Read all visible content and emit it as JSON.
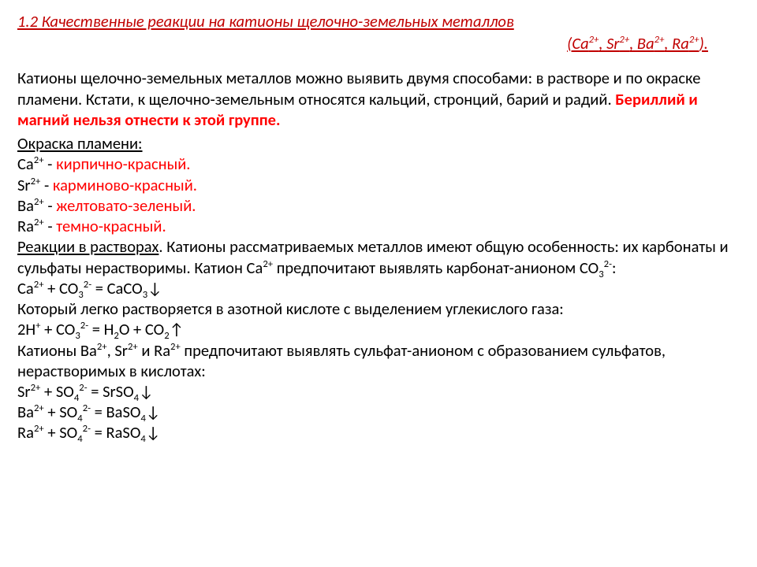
{
  "title_fontsize": 20.5,
  "body_fontsize": 20.5,
  "colors": {
    "heading": "#c00000",
    "red_accent": "#ff0000",
    "text": "#000000",
    "background": "#ffffff"
  },
  "heading": {
    "line1": "1.2 Качественные реакции на катионы щелочно-земельных металлов",
    "line2_html": "(Ca<sup>2+</sup>, Sr<sup>2+</sup>, Ba<sup>2+</sup>, Ra<sup>2+</sup>)."
  },
  "intro": {
    "plain": "Катионы щелочно-земельных металлов можно выявить двумя способами: в растворе и по окраске пламени. Кстати, к щелочно-земельным относятся кальций, стронций, барий и радий. ",
    "accent": "Бериллий и магний нельзя отнести к этой группе."
  },
  "flame": {
    "label": "Окраска пламени:",
    "items": [
      {
        "ion_html": "Ca<sup>2+</sup> - ",
        "color_text": "кирпично-красный."
      },
      {
        "ion_html": "Sr<sup>2+</sup> - ",
        "color_text": "карминово-красный."
      },
      {
        "ion_html": "Ba<sup>2+</sup> - ",
        "color_text": "желтовато-зеленый."
      },
      {
        "ion_html": "Ra<sup>2+</sup> - ",
        "color_text": "темно-красный."
      }
    ]
  },
  "solutions": {
    "label": "Реакции в растворах",
    "text1_html": ". Катионы рассматриваемых металлов имеют общую особенность: их карбонаты и сульфаты нерастворимы. Катион Ca<sup>2+</sup> предпочитают выявлять карбонат-анионом CO<sub>3</sub><sup>2-</sup>:",
    "eq1_html": "Ca<sup>2+</sup> + CO<sub>3</sub><sup>2-</sup> = CaCO<sub>3</sub>↓",
    "text2": "Который легко растворяется в азотной кислоте с выделением углекислого газа:",
    "eq2_html": "2H<sup>+</sup> + CO<sub>3</sub><sup>2-</sup> = H<sub>2</sub>O + CO<sub>2</sub>↑",
    "text3_html": "Катионы Ba<sup>2+</sup>, Sr<sup>2+</sup> и Ra<sup>2+</sup> предпочитают выявлять сульфат-анионом с образованием сульфатов, нерастворимых в кислотах:",
    "eq3_html": "Sr<sup>2+</sup> + SO<sub>4</sub><sup>2-</sup> = SrSO<sub>4</sub>↓",
    "eq4_html": "Ba<sup>2+</sup> + SO<sub>4</sub><sup>2-</sup> = BaSO<sub>4</sub>↓",
    "eq5_html": "Ra<sup>2+</sup> + SO<sub>4</sub><sup>2-</sup> = RaSO<sub>4</sub>↓"
  }
}
